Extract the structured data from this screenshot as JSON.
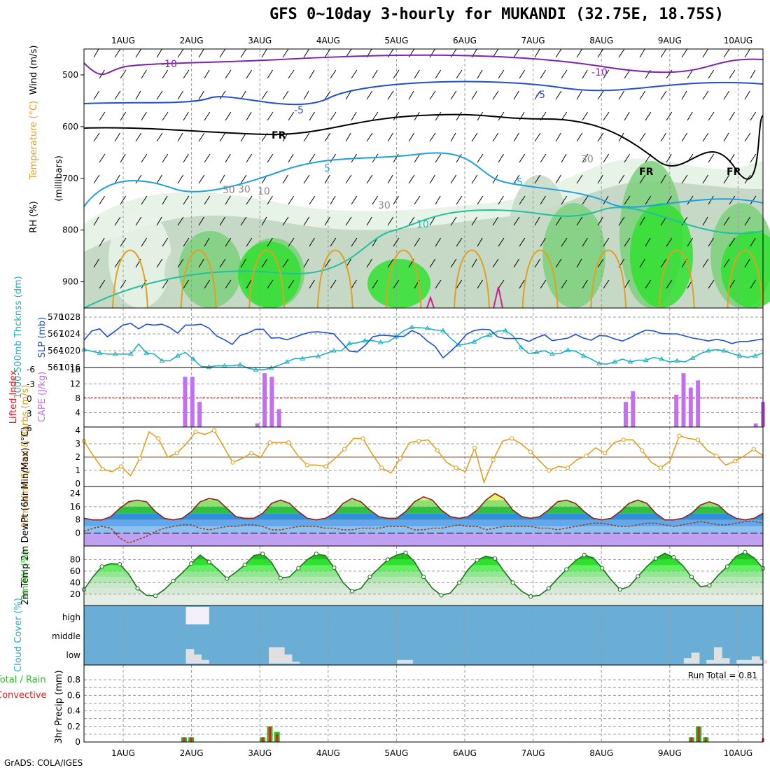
{
  "title": "GFS 0~10day 3-hourly for MUKANDI (32.75E, 18.75S)",
  "footer": "GrADS: COLA/IGES",
  "run_total_label": "Run Total = 0.81",
  "x_axis": {
    "ticks": [
      "1AUG",
      "2AUG",
      "3AUG",
      "4AUG",
      "5AUG",
      "6AUG",
      "7AUG",
      "8AUG",
      "9AUG",
      "10AUG"
    ]
  },
  "colors": {
    "purple": "#8020b0",
    "blue": "#1f4fd0",
    "lightblue": "#1ea0e0",
    "teal": "#20c0a0",
    "orange": "#e0a020",
    "magenta": "#d02090",
    "cyan": "#20b0c0",
    "cape": "#c070f0",
    "rain": "#20c020",
    "convective": "#e02020",
    "cloud_bg": "#6aaed6",
    "cloud": "#e0e0e0"
  },
  "chart_data": [
    {
      "panel": "upper_air",
      "type": "contour",
      "ylabel": "(millibars)",
      "legend_labels": [
        "Wind (m/s)",
        "Temperature (°C)",
        "RH (%)"
      ],
      "yticks": [
        500,
        600,
        700,
        800,
        900
      ],
      "contour_labels": [
        "-10",
        "-10",
        "-5",
        "-5",
        "FR",
        "FR",
        "FR",
        "5",
        "-5",
        "10",
        "30",
        "30",
        "50",
        "30",
        "10"
      ]
    },
    {
      "panel": "slp_thickness",
      "type": "line",
      "ylabel_left": "1000-500mb Thcknss (dm)",
      "ylabel_right": "SLP (mb)",
      "yticks_left": [
        570,
        567,
        564,
        561
      ],
      "yticks_right": [
        1028,
        1024,
        1020,
        1016
      ],
      "series": [
        {
          "name": "SLP",
          "values": [
            1022.5,
            1024.7,
            1025.2,
            1023.3,
            1024.7,
            1026.1,
            1026.5,
            1025.2,
            1026.3,
            1026.1,
            1026.3,
            1025.5,
            1024.2,
            1026.1,
            1026.1,
            1026.3,
            1025.4,
            1023.5,
            1022.6,
            1021.5,
            1023.6,
            1024.2,
            1025.1,
            1025.1,
            1023.0,
            1023.1,
            1022.6,
            1023.2,
            1023.9,
            1024.4,
            1024.5,
            1024.3,
            1024.0,
            1022.0,
            1019.9,
            1019.7,
            1021.2,
            1023.3,
            1023.7,
            1023.6,
            1023.4,
            1023.4,
            1024.8,
            1024.0,
            1022.3,
            1021.0,
            1018.3,
            1019.9,
            1021.7,
            1023.9,
            1024.8,
            1025.1,
            1025.0,
            1023.3,
            1022.9,
            1022.9,
            1022.9,
            1022.2,
            1023.1,
            1023.8,
            1022.4,
            1022.7,
            1023.0,
            1023.9,
            1023.0,
            1022.5,
            1023.6,
            1023.5,
            1022.8,
            1022.3,
            1023.1,
            1024.1,
            1024.9,
            1024.7,
            1024.1,
            1024.0,
            1024.0,
            1023.5,
            1023.0,
            1022.7,
            1022.3,
            1022.7,
            1022.4,
            1021.7,
            1022.2,
            1022.2,
            1022.5,
            1022.8
          ]
        },
        {
          "name": "Thickness",
          "values": [
            564.2,
            563.9,
            563.6,
            563.4,
            563.4,
            563.4,
            563.4,
            565.2,
            563.6,
            563.4,
            562.2,
            562.2,
            563.1,
            563.7,
            562.5,
            561.2,
            561.1,
            561.3,
            561.3,
            561.3,
            561.5,
            560.9,
            560.6,
            560.6,
            560.9,
            561.4,
            562.0,
            562.6,
            562.6,
            562.9,
            563.0,
            563.5,
            564.0,
            564.0,
            565.3,
            565.4,
            565.8,
            565.8,
            565.5,
            565.6,
            566.5,
            567.6,
            568.2,
            568.1,
            568.0,
            567.7,
            567.6,
            566.2,
            565.0,
            565.2,
            565.6,
            566.4,
            566.8,
            567.5,
            567.6,
            566.6,
            564.6,
            563.5,
            563.7,
            564.0,
            563.4,
            563.5,
            564.1,
            563.9,
            563.1,
            562.5,
            561.7,
            561.6,
            562.0,
            562.5,
            562.0,
            562.3,
            562.3,
            562.8,
            562.5,
            562.0,
            562.2,
            562.0,
            562.7,
            563.5,
            564.0,
            564.2,
            564.0,
            563.5,
            563.1,
            562.8,
            563.1,
            563.6
          ]
        }
      ]
    },
    {
      "panel": "cape_li",
      "type": "bar",
      "ylabel_left": "Lifted Index",
      "ylabel_right": "CAPE (J/kg)",
      "yticks_left": [
        "-6",
        "-3",
        "0",
        "3",
        "6"
      ],
      "yticks_right": [
        "16",
        "12",
        "8",
        "4"
      ],
      "series": [
        {
          "name": "CAPE",
          "values": [
            0,
            0,
            0,
            0,
            0,
            0,
            0,
            0,
            0,
            0,
            0,
            0,
            0,
            0,
            14,
            14,
            7,
            0,
            0,
            0,
            0,
            0,
            0,
            0,
            1,
            15,
            14,
            5,
            0,
            0,
            0,
            0,
            0,
            0,
            0,
            0,
            0,
            0,
            0,
            0,
            0,
            0,
            0,
            0,
            0,
            0,
            0,
            0,
            0,
            0,
            0,
            0,
            0,
            0,
            0,
            0,
            0,
            0,
            0,
            0,
            0,
            0,
            0,
            0,
            0,
            0,
            0,
            0,
            0,
            0,
            0,
            0,
            0,
            0,
            0,
            7,
            10,
            0,
            0,
            0,
            0,
            0,
            9,
            15,
            11,
            13,
            0,
            0,
            0,
            0,
            0,
            0,
            0,
            1,
            7
          ]
        }
      ]
    },
    {
      "panel": "wind10m",
      "type": "line",
      "ylabel": "10m Wind Speed & Barbs (m/s)",
      "yticks": [
        4,
        3,
        2,
        1,
        0
      ],
      "series": [
        {
          "name": "Speed",
          "values": [
            3.2,
            2.1,
            1.1,
            0.9,
            1.3,
            0.6,
            1.9,
            3.9,
            3.4,
            2.0,
            2.3,
            3.0,
            3.9,
            3.7,
            4.0,
            2.8,
            1.6,
            1.9,
            2.3,
            2.0,
            3.1,
            3.1,
            3.1,
            2.1,
            1.4,
            1.4,
            1.3,
            1.9,
            2.6,
            3.4,
            3.4,
            2.2,
            1.2,
            0.8,
            1.9,
            3.1,
            3.2,
            3.3,
            2.5,
            1.6,
            1.2,
            0.9,
            2.7,
            0.1,
            1.8,
            3.2,
            3.4,
            3.0,
            2.4,
            1.7,
            1.0,
            1.3,
            1.2,
            1.8,
            2.1,
            2.7,
            2.3,
            3.1,
            3.3,
            3.3,
            2.5,
            1.6,
            1.2,
            1.7,
            3.6,
            3.4,
            3.3,
            2.5,
            2.1,
            1.4,
            1.7,
            2.1,
            2.6,
            2.1
          ]
        }
      ]
    },
    {
      "panel": "temp2m",
      "type": "area",
      "ylabel": "2m Temp 2m DewPt (6hr Min/Max) (°C)",
      "yticks": [
        24,
        16,
        8,
        0
      ],
      "series": [
        {
          "name": "Temp",
          "values": [
            9,
            8,
            8,
            10,
            15,
            19,
            20,
            19,
            13,
            9,
            8,
            9,
            13,
            19,
            21,
            20,
            15,
            10,
            9,
            9,
            12,
            18,
            20,
            18,
            13,
            9,
            8,
            9,
            12,
            18,
            21,
            19,
            14,
            10,
            9,
            9,
            13,
            19,
            22,
            20,
            14,
            10,
            9,
            10,
            14,
            20,
            24,
            21,
            14,
            10,
            9,
            10,
            14,
            19,
            20,
            18,
            13,
            9,
            8,
            9,
            13,
            18,
            20,
            18,
            12,
            8,
            8,
            9,
            12,
            17,
            19,
            17,
            12,
            9,
            8,
            9,
            12
          ]
        },
        {
          "name": "DewPt",
          "values": [
            1,
            3,
            4,
            3,
            -3,
            -6,
            -4,
            -2,
            1,
            3,
            4,
            5,
            5,
            3,
            2,
            3,
            4,
            4,
            5,
            5,
            4,
            2,
            2,
            3,
            4,
            4,
            4,
            3,
            3,
            2,
            2,
            3,
            3,
            3,
            4,
            4,
            4,
            2,
            2,
            3,
            3,
            4,
            5,
            4,
            4,
            2,
            3,
            4,
            4,
            4,
            4,
            3,
            3,
            2,
            3,
            4,
            5,
            6,
            6,
            5,
            4,
            4,
            5,
            6,
            6,
            5,
            4,
            5,
            6,
            7,
            6,
            5,
            5,
            6,
            7,
            7,
            6
          ]
        }
      ]
    },
    {
      "panel": "rh2m",
      "type": "area",
      "ylabel": "2m RH (%)",
      "yticks": [
        80,
        60,
        40,
        20
      ],
      "series": [
        {
          "name": "RH",
          "values": [
            28,
            50,
            68,
            73,
            72,
            55,
            30,
            18,
            17,
            28,
            43,
            57,
            73,
            88,
            76,
            63,
            47,
            58,
            71,
            87,
            90,
            75,
            48,
            50,
            65,
            80,
            90,
            87,
            66,
            40,
            25,
            30,
            50,
            65,
            80,
            88,
            92,
            76,
            50,
            30,
            18,
            22,
            40,
            63,
            79,
            86,
            82,
            60,
            40,
            25,
            16,
            18,
            30,
            47,
            63,
            78,
            88,
            83,
            65,
            45,
            28,
            33,
            51,
            68,
            82,
            91,
            84,
            70,
            50,
            33,
            35,
            53,
            68,
            86,
            93,
            83,
            65
          ]
        }
      ]
    },
    {
      "panel": "cloud",
      "type": "bar",
      "ylabel": "Cloud Cover (%)",
      "layers": [
        "high",
        "middle",
        "low"
      ],
      "series": [
        {
          "name": "high",
          "values": [
            0,
            0,
            0,
            0,
            0,
            0,
            0,
            0,
            0,
            0,
            0,
            0,
            0,
            0,
            1,
            1,
            1,
            0,
            0,
            0,
            0,
            0,
            0,
            0,
            0,
            0,
            0,
            0,
            0,
            0,
            0,
            0,
            0,
            0,
            0,
            0,
            0,
            0,
            0,
            0,
            0,
            0,
            0,
            0,
            0,
            0,
            0,
            0,
            0,
            0,
            0,
            0,
            0,
            0,
            0,
            0,
            0,
            0,
            0,
            0,
            0,
            0,
            0,
            0,
            0,
            0,
            0,
            0,
            0,
            0,
            0,
            0,
            0,
            0,
            0,
            0,
            0,
            0,
            0,
            0,
            0,
            0,
            0,
            0,
            0,
            0,
            0,
            0,
            0,
            0,
            0
          ]
        },
        {
          "name": "low",
          "values": [
            0,
            0,
            0,
            0,
            0,
            0,
            0,
            0,
            0,
            0,
            0,
            0,
            0,
            0,
            0.8,
            0.5,
            0.2,
            0,
            0,
            0,
            0,
            0,
            0,
            0,
            0,
            0.9,
            0.9,
            0.5,
            0.1,
            0,
            0,
            0,
            0,
            0,
            0,
            0,
            0,
            0,
            0,
            0,
            0,
            0,
            0.2,
            0.2,
            0,
            0,
            0,
            0,
            0,
            0,
            0,
            0,
            0,
            0,
            0,
            0,
            0,
            0,
            0,
            0,
            0,
            0,
            0,
            0,
            0,
            0,
            0,
            0,
            0,
            0,
            0,
            0,
            0,
            0,
            0,
            0,
            0,
            0,
            0,
            0,
            0.3,
            0.6,
            0,
            0.2,
            0.9,
            0.3,
            0,
            0.2,
            0.2,
            0.4,
            0.2,
            0,
            0.8,
            0.4
          ]
        }
      ]
    },
    {
      "panel": "precip",
      "type": "bar",
      "ylabel": "3hr Precip (mm)",
      "legend_labels": [
        "Total / Rain",
        "Convective"
      ],
      "yticks": [
        0.8,
        0.6,
        0.4,
        0.2,
        0
      ],
      "series": [
        {
          "name": "Total",
          "values": [
            0,
            0,
            0,
            0,
            0,
            0,
            0,
            0,
            0,
            0,
            0,
            0,
            0,
            0,
            0.06,
            0.06,
            0,
            0,
            0,
            0,
            0,
            0,
            0,
            0,
            0,
            0.06,
            0.2,
            0.13,
            0,
            0,
            0,
            0,
            0,
            0,
            0,
            0,
            0,
            0,
            0,
            0,
            0,
            0,
            0,
            0,
            0,
            0,
            0,
            0,
            0,
            0,
            0,
            0,
            0,
            0,
            0,
            0,
            0,
            0,
            0,
            0,
            0,
            0,
            0,
            0,
            0,
            0,
            0,
            0,
            0,
            0,
            0,
            0,
            0,
            0,
            0,
            0,
            0,
            0,
            0,
            0,
            0,
            0,
            0,
            0,
            0,
            0.06,
            0.2,
            0.06,
            0,
            0,
            0,
            0,
            0,
            0,
            0,
            0
          ]
        },
        {
          "name": "Convective",
          "values": [
            0,
            0,
            0,
            0,
            0,
            0,
            0,
            0,
            0,
            0,
            0,
            0,
            0,
            0,
            0.06,
            0.06,
            0,
            0,
            0,
            0,
            0,
            0,
            0,
            0,
            0,
            0.06,
            0.2,
            0.1,
            0,
            0,
            0,
            0,
            0,
            0,
            0,
            0,
            0,
            0,
            0,
            0,
            0,
            0,
            0,
            0,
            0,
            0,
            0,
            0,
            0,
            0,
            0,
            0,
            0,
            0,
            0,
            0,
            0,
            0,
            0,
            0,
            0,
            0,
            0,
            0,
            0,
            0,
            0,
            0,
            0,
            0,
            0,
            0,
            0,
            0,
            0,
            0,
            0,
            0,
            0,
            0,
            0,
            0,
            0,
            0,
            0,
            0.06,
            0.2,
            0.06,
            0,
            0,
            0,
            0,
            0,
            0,
            0,
            0.05
          ]
        }
      ]
    }
  ]
}
